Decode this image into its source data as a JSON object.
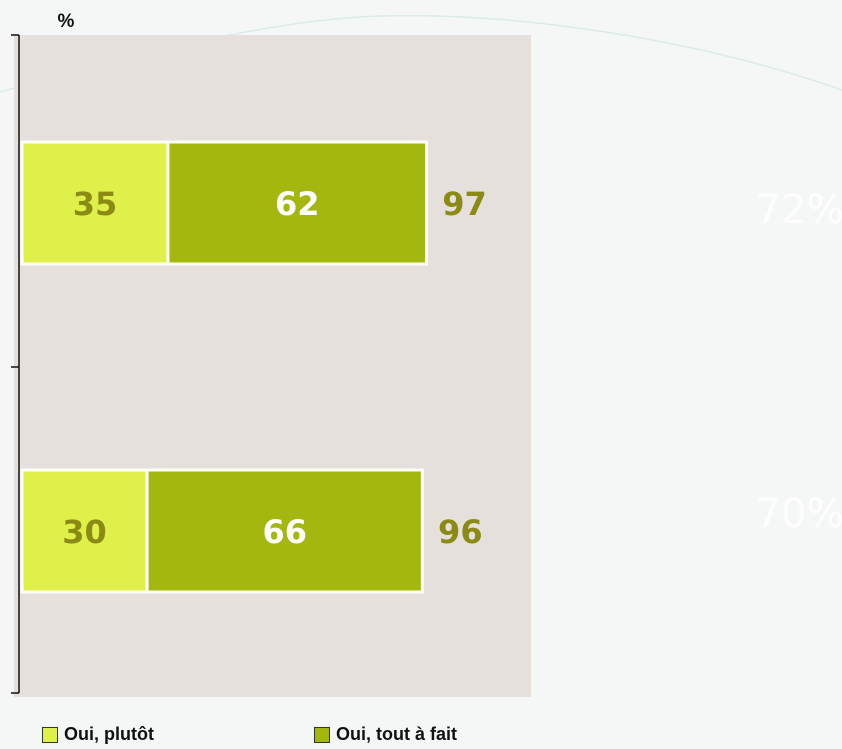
{
  "chart_data": {
    "type": "bar",
    "orientation": "horizontal",
    "stacked": true,
    "unit_label": "%",
    "categories": [
      "",
      ""
    ],
    "series": [
      {
        "name": "Oui, plutôt",
        "values": [
          35,
          30
        ],
        "color": "#dff04a",
        "label_color": "#8a8a14"
      },
      {
        "name": "Oui, tout à fait",
        "values": [
          62,
          66
        ],
        "color": "#a3b70f",
        "label_color": "#ffffff"
      }
    ],
    "totals": [
      97,
      96
    ],
    "total_color": "#8a8a14",
    "xlim": [
      0,
      100
    ],
    "grid": false,
    "legend_position": "bottom-left",
    "background_labels": [
      "72%",
      "70%"
    ],
    "plot_background": "#e6e0dd"
  }
}
